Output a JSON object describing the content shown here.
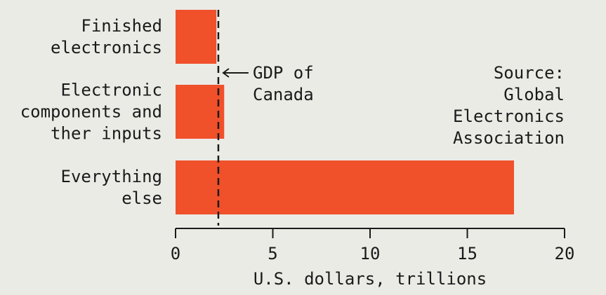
{
  "chart_data": {
    "type": "bar",
    "orientation": "horizontal",
    "categories": [
      [
        "Finished",
        "electronics"
      ],
      [
        "Electronic",
        "components and",
        "ther inputs"
      ],
      [
        "Everything",
        "else"
      ]
    ],
    "values": [
      2.1,
      2.5,
      17.4
    ],
    "xlabel": "U.S. dollars, trillions",
    "xlim": [
      0,
      20
    ],
    "xticks": [
      0,
      5,
      10,
      15,
      20
    ],
    "grid": false,
    "colors": {
      "bar": "#f0502a",
      "text": "#1a1a1a",
      "background": "#ebebe6"
    },
    "reference_line": {
      "value": 2.2,
      "style": "dashed",
      "label": [
        "GDP of",
        "Canada"
      ]
    },
    "source_note": [
      "Source:",
      "Global",
      "Electronics",
      "Association"
    ]
  }
}
